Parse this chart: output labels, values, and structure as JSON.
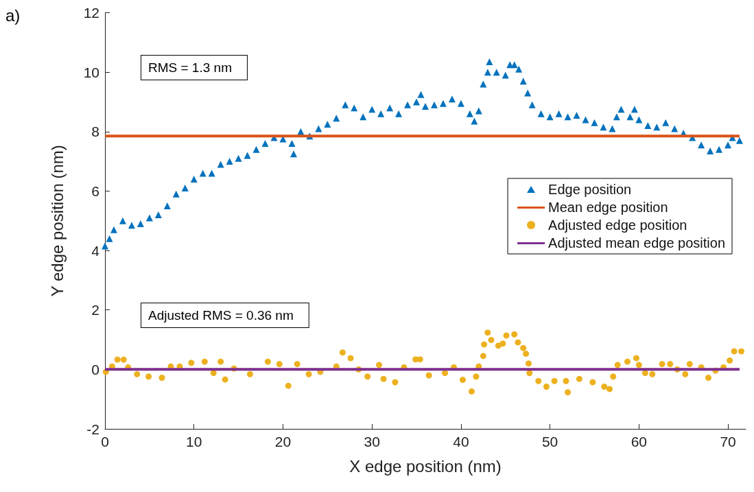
{
  "chart_data": {
    "type": "scatter",
    "xlabel": "X edge position (nm)",
    "ylabel": "Y edge position (nm)",
    "annotations": [
      "a)",
      "RMS = 1.3 nm",
      "Adjusted RMS = 0.36 nm"
    ],
    "xlim": [
      0,
      72
    ],
    "xticks": [
      0,
      10,
      20,
      30,
      40,
      50,
      60,
      70
    ],
    "ylim": [
      -2,
      12
    ],
    "yticks": [
      -2,
      0,
      2,
      4,
      6,
      8,
      10,
      12
    ],
    "grid": false,
    "legend": "right",
    "series": [
      {
        "name": "Edge position",
        "marker": "triangle",
        "color": "#0072bd",
        "x": [
          0,
          0.5,
          1,
          2,
          3,
          4,
          5,
          6,
          7,
          8,
          9,
          10,
          11,
          12,
          13,
          14,
          15,
          16,
          17,
          18,
          19,
          20,
          21,
          21.2,
          22,
          23,
          24,
          25,
          26,
          27,
          28,
          29,
          30,
          31,
          32,
          33,
          34,
          35,
          35.5,
          36,
          37,
          38,
          39,
          40,
          41,
          41.5,
          42,
          42.5,
          43,
          43.2,
          44,
          45,
          45.5,
          46,
          46.5,
          47,
          47.5,
          48,
          49,
          50,
          51,
          52,
          53,
          54,
          55,
          56,
          57,
          57.5,
          58,
          59,
          59.5,
          60,
          61,
          62,
          63,
          64,
          65,
          66,
          67,
          68,
          69,
          70,
          70.5,
          71.3
        ],
        "values": [
          4.15,
          4.4,
          4.7,
          5.0,
          4.85,
          4.9,
          5.1,
          5.2,
          5.5,
          5.9,
          6.1,
          6.4,
          6.6,
          6.6,
          6.9,
          7.0,
          7.1,
          7.2,
          7.4,
          7.6,
          7.8,
          7.75,
          7.6,
          7.25,
          8.0,
          7.85,
          8.1,
          8.25,
          8.45,
          8.9,
          8.8,
          8.5,
          8.75,
          8.6,
          8.8,
          8.6,
          8.9,
          9.0,
          9.25,
          8.85,
          8.9,
          8.95,
          9.1,
          8.95,
          8.6,
          8.35,
          8.7,
          9.6,
          10.0,
          10.35,
          10.0,
          9.9,
          10.25,
          10.25,
          10.1,
          9.7,
          9.3,
          8.9,
          8.6,
          8.5,
          8.6,
          8.5,
          8.55,
          8.4,
          8.3,
          8.15,
          8.1,
          8.5,
          8.75,
          8.5,
          8.75,
          8.4,
          8.2,
          8.15,
          8.3,
          8.1,
          7.95,
          7.8,
          7.55,
          7.35,
          7.4,
          7.55,
          7.8,
          7.7
        ]
      },
      {
        "name": "Mean edge position",
        "type": "line",
        "marker": "none",
        "color": "#d95319",
        "x": [
          0,
          71.3
        ],
        "values": [
          7.85,
          7.85
        ]
      },
      {
        "name": "Adjusted edge position",
        "marker": "circle",
        "color": "#edb120",
        "x": [
          0.1,
          0.8,
          1.4,
          2.1,
          2.6,
          3.6,
          4.9,
          6.4,
          7.4,
          8.4,
          9.7,
          11.2,
          12.2,
          13,
          13.5,
          14.5,
          16.3,
          18.3,
          19.6,
          20.6,
          21.6,
          22.9,
          24.2,
          26,
          26.7,
          27.6,
          28.5,
          29.5,
          30.8,
          31.3,
          32.6,
          33.6,
          34.9,
          35.4,
          36.4,
          38.2,
          39.2,
          40.2,
          41.2,
          41.7,
          42,
          42.5,
          42.6,
          43,
          43.4,
          44.2,
          44.7,
          45.1,
          46,
          46.4,
          47,
          47.3,
          47.6,
          47.7,
          48.7,
          49.6,
          50.5,
          51.8,
          52,
          53.3,
          54.8,
          56.1,
          56.7,
          57.1,
          57.6,
          58.7,
          59.7,
          60,
          60.7,
          61.5,
          62.6,
          63.5,
          64.3,
          65.2,
          65.7,
          67,
          67.8,
          68.6,
          69.5,
          70.2,
          70.7,
          71.5
        ],
        "values": [
          -0.08,
          0.1,
          0.33,
          0.33,
          0.07,
          -0.16,
          -0.24,
          -0.28,
          0.1,
          0.1,
          0.22,
          0.26,
          -0.12,
          0.26,
          -0.34,
          0.03,
          -0.16,
          0.26,
          0.18,
          -0.55,
          0.18,
          -0.16,
          -0.08,
          0.1,
          0.57,
          0.38,
          0,
          -0.24,
          0.15,
          -0.32,
          -0.43,
          0.07,
          0.34,
          0.34,
          -0.2,
          -0.12,
          0.07,
          -0.35,
          -0.74,
          -0.24,
          0.1,
          0.45,
          0.84,
          1.24,
          0.99,
          0.8,
          0.87,
          1.14,
          1.18,
          0.91,
          0.72,
          0.53,
          0.2,
          -0.12,
          -0.39,
          -0.58,
          -0.39,
          -0.39,
          -0.77,
          -0.32,
          -0.43,
          -0.58,
          -0.66,
          -0.24,
          0.15,
          0.26,
          0.38,
          0.15,
          -0.12,
          -0.16,
          0.18,
          0.18,
          0,
          -0.16,
          0.18,
          0.07,
          -0.28,
          -0.04,
          0.07,
          0.3,
          0.61,
          0.61
        ]
      },
      {
        "name": "Adjusted mean edge position",
        "type": "line",
        "marker": "none",
        "color": "#7e2f8e",
        "x": [
          0,
          71.3
        ],
        "values": [
          0,
          0
        ]
      }
    ]
  }
}
